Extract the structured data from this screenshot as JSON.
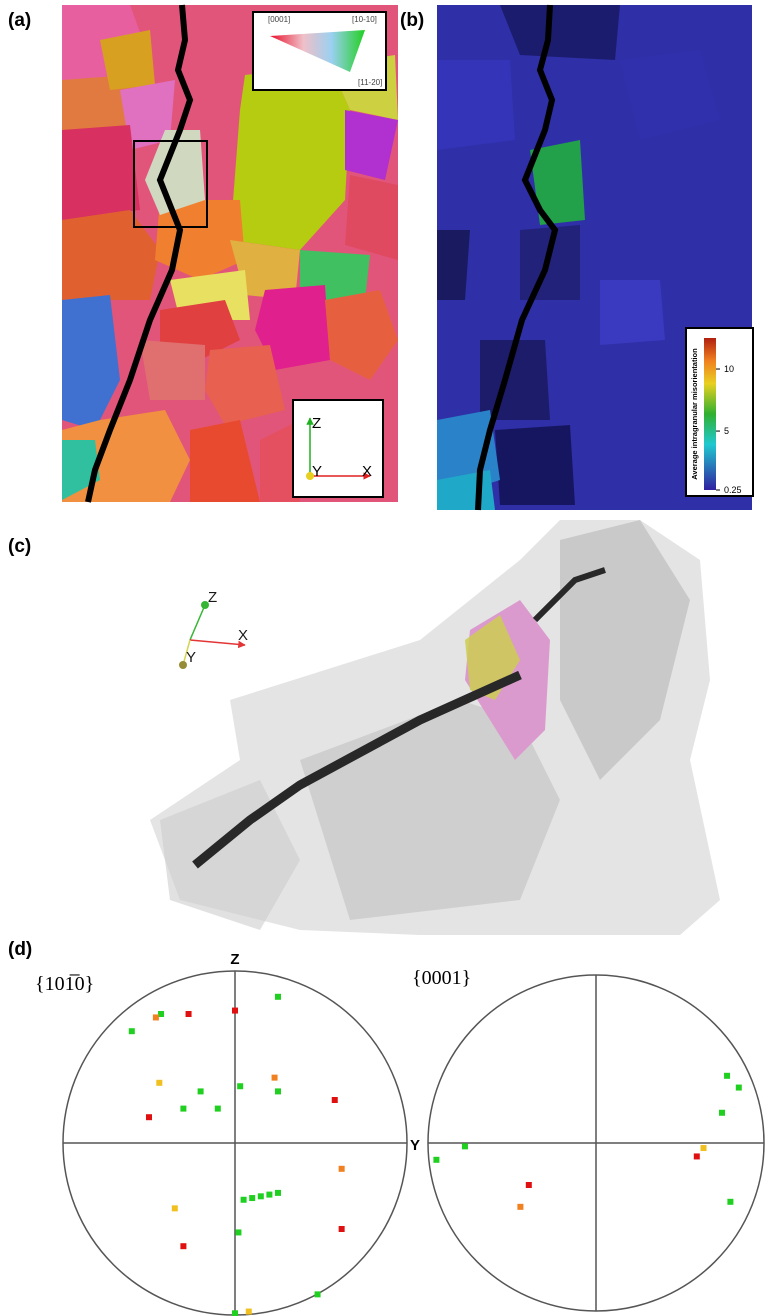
{
  "panel_labels": [
    "(a)",
    "(b)",
    "(c)",
    "(d)"
  ],
  "ipf_key": {
    "labels": [
      "[0001]",
      "[10-10]",
      "[11-20]"
    ]
  },
  "panel_a_axes": {
    "z": "Z",
    "y": "Y",
    "x": "X"
  },
  "panel_b_colorbar": {
    "label": "Average intragranular misorientation",
    "lim": [
      0.25,
      12.5
    ],
    "ticks": [
      0.25,
      5,
      10
    ]
  },
  "panel_c_axes": {
    "z": "Z",
    "x": "X",
    "y": "Y"
  },
  "pole_figures": {
    "titles": [
      "{101̅0}",
      "{0001}"
    ],
    "z_label": "Z",
    "y_label": "Y"
  }
}
